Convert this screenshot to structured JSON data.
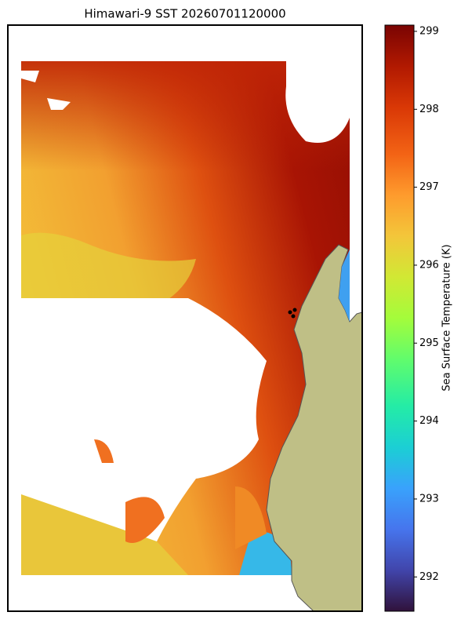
{
  "title": "Himawari-9 SST 20260701120000",
  "colorbar": {
    "label": "Sea Surface Temperature (K)",
    "range": [
      291.56,
      299.08
    ],
    "ticks": [
      292,
      293,
      294,
      295,
      296,
      297,
      298,
      299
    ]
  }
}
